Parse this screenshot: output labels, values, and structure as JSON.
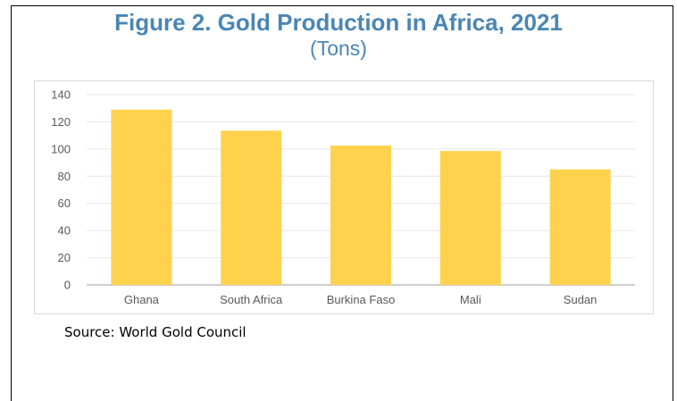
{
  "chart_data": {
    "type": "bar",
    "title": "Figure 2. Gold Production in Africa, 2021",
    "subtitle": "(Tons)",
    "categories": [
      "Ghana",
      "South Africa",
      "Burkina Faso",
      "Mali",
      "Sudan"
    ],
    "values": [
      129,
      113.5,
      102.5,
      98.5,
      85
    ],
    "ylim": [
      0,
      140
    ],
    "yticks": [
      "0",
      "20",
      "40",
      "60",
      "80",
      "100",
      "120",
      "140"
    ],
    "grid": true,
    "legend": "none",
    "bar_color": "#ffd24d",
    "source": "Source: World Gold Council"
  }
}
